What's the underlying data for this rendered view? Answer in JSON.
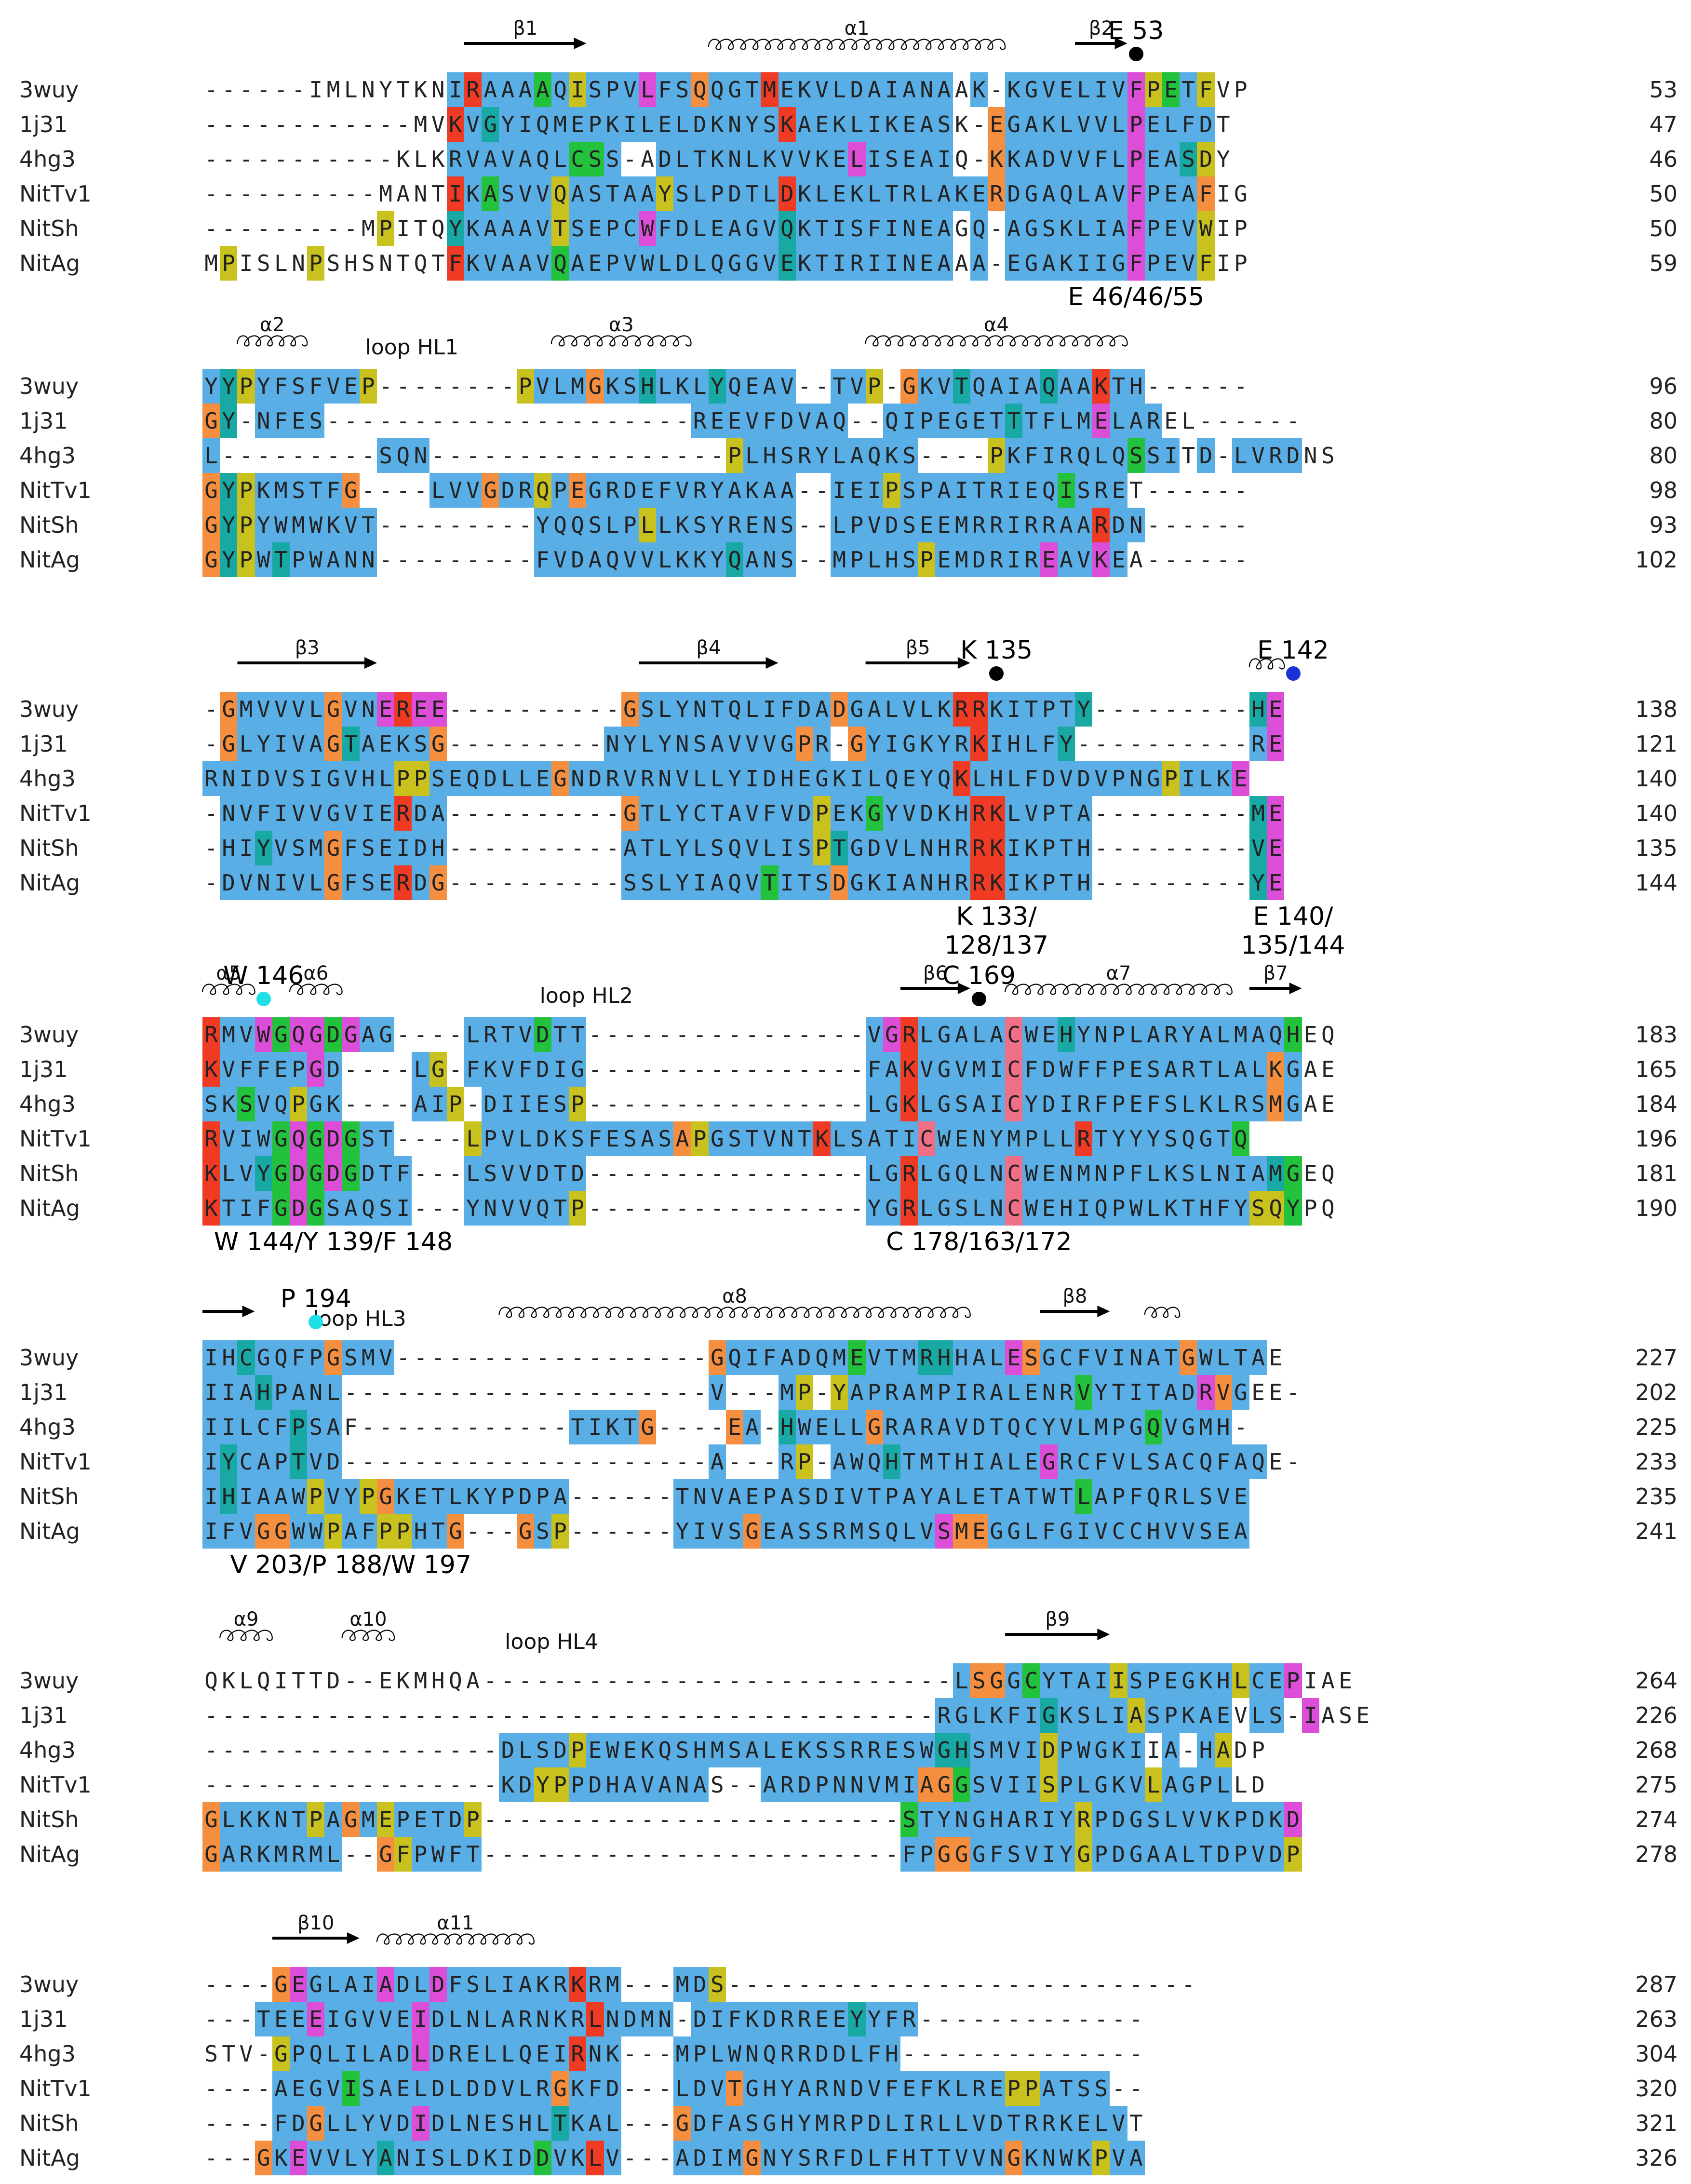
{
  "colors": {
    "blue": "#5aaee6",
    "red": "#ef3a24",
    "green": "#22c23c",
    "teal": "#18a9a4",
    "orange": "#f58f3f",
    "yellow": "#c9c21e",
    "magenta": "#dc4ed8",
    "pink": "#ee6f86",
    "dot_black": "#000000",
    "dot_cyan": "#1ee0e6",
    "dot_blue": "#1a33d6"
  },
  "sequence_names": [
    "3wuy",
    "1j31",
    "4hg3",
    "NitTv1",
    "NitSh",
    "NitAg"
  ],
  "blocks": [
    {
      "rows": [
        "------IMLNYTKNIRAAAAQISPVLFSQQGTMEKVLDAIANAAK-KGVELIVFPETFVP",
        "------------MVKVGYIQMEPKILELDKNYSKAEKLIKEASK-EGAKLVVLPELFDT",
        "-----------KLKRVAVAQLCSS-ADLTKNLKVVKELISEAIQ-KKADVVFLPEASDY",
        "----------MANTIKASVVQASTAAYSLPDTLDKLEKLTRLAKERDGAQLAVFPEAFIG",
        "---------MPITQYKAAAVTSEPCWFDLEAGVQKTISFINEAGQ-AGSKLIAFPEVWIP",
        "MPISLNPSHSNTQTFKVAAVQAEPVWLDLQGGVEKTIRIINEAAA-EGAKIIGFPEVFIP"
      ],
      "colors": [
        "..............BRBBBGBYBBBMBBOBBBRBBBBBBBBBB.BOBBBBBBBMYGBY",
        "..............RBTBBBBBBBBBBBBBBBBRBBBBBBBBB.BOBBBBBBBMBBBB",
        "..............BBBBBBBGGBB.BBBBBBBBBBBMBBBBB.BOBBBBBBBMBBTY",
        "..............RBGBBBYBBBBBYBBBBBBRBBBBBBBBBBBOBBBBBBBMBBBO",
        "..........Y...TBBBBBYBBBBMBBBBBBBTBBBBBBBBB.BOBBBBBBBMBBBY",
        ".Y....Y.......RBBBBBGBBBBBBBBBBBBTBBBBBBBBB.BOBBBBBBBMBBBY"
      ],
      "end_numbers": [
        "53",
        "47",
        "46",
        "50",
        "50",
        "59"
      ],
      "structure": [
        {
          "kind": "strand",
          "label": "β1",
          "from": 15,
          "to": 21
        },
        {
          "kind": "helix",
          "label": "α1",
          "from": 29,
          "to": 45
        },
        {
          "kind": "strand",
          "label": "β2",
          "from": 50,
          "to": 52
        }
      ],
      "loops": [],
      "markers": [
        {
          "col": 53,
          "color": "dot_black",
          "label": "E 53"
        }
      ],
      "below": [
        {
          "col": 53,
          "text": "E 46/46/55"
        }
      ]
    },
    {
      "rows": [
        "YYPYFSFVEP--------PVLMGKSHLKLYQEAV--TVP-GKVTQAIAQAAKTH------",
        "GY-NFES---------------------REEVFDVAQ--QIPEGETTTFLMELAREL------",
        "L---------SQN-----------------PLHSRYLAQKS----PKFIRQLQSSITD-LVRDNS",
        "GYPKMSTFG----LVVGDRQPEGRDEFVRYAKAA--IEIPSPAITRIEQISRET------",
        "GYPYWMWKVT---------YQQSLPLLKSYRENS--LPVDSEEMRRIRRAARDN------",
        "GYPWTPWANN---------FVDAQVVLKKYQANS--MPLHSPEMDRIREAVKEA------"
      ],
      "colors": [
        "BTYBBBBBBY........YBBBOBBTBBBTBBBB..BBY.OBBTBBBBTBBRBB......",
        "OT.BBBB.....................BBBBBBBBB..BBBBBBBTBBBBMBBB......",
        "B.........BBB.................YBBBBBBBBBB....YBBBBBBBGBB.BBBBBB",
        "OTYBBBBBO....BBBOBBYBOBBBBBBBBBBBB..BBBYBBBBBBBBBGBBB......",
        "OTYBBBBBBB.........BBBBBBYBBBBBBBB..BBBBBBBBBBBBBBBRBB......",
        "OTYBTBBBBB.........BBBBBBBBBBBTBBB..BBBBBYBBBBBBMBBMB......"
      ],
      "end_numbers": [
        "96",
        "80",
        "80",
        "98",
        "93",
        "102"
      ],
      "structure": [
        {
          "kind": "helix",
          "label": "α2",
          "from": 2,
          "to": 5
        },
        {
          "kind": "helix",
          "label": "α3",
          "from": 20,
          "to": 27
        },
        {
          "kind": "helix",
          "label": "α4",
          "from": 38,
          "to": 52
        }
      ],
      "loops": [
        {
          "col": 12,
          "text": "loop HL1"
        }
      ],
      "markers": [],
      "below": []
    },
    {
      "rows": [
        "-GMVVVLGVNEREE----------GSLYNTQLIFDADGALVLKRRKITPTY---------HE",
        "-GLYIVAGTAEKSG---------NYLYNSAVVVGPR-GYIGKYRKIHLFY----------RE",
        "RNIDVSIGVHLPPSEQDLLEGNDRVRNVLLYIDHEGKILQEYQKLHLFDVDVPNGPILKE",
        "-NVFIVVGVIERDA----------GTLYCTAVFVDPEKGYVDKHRKLVPTA---------ME",
        "-HIYVSMGFSEIDH----------ATLYLSQVLISPTGDVLNHRRKIKPTH---------VE",
        "-DVNIVLGFSERDG----------SSLYIAQVTITSDGKIANHRRKIKPTH---------YE"
      ],
      "colors": [
        ".OBBBBBOBBMRMM..........OBBBBBBBBBBBOBBBBBBRRBBBBBT.........TM",
        ".OBBBBBOTBBBBO.........BBBBBBBBBBBOB.OBBBBBBRBBBBT..........BM",
        "BBBBBBBBBBBYYBBBBBBBOBBBBBBBBBBBBBBBBBBBBBBRBBBBBBBBBBBYBBBM",
        ".BBBBBBBBBBRBB..........OBBBBBBBBBBYBBGBBBBBRRBBBBB.........TM",
        ".BBTBBBOBBBBBB..........BBBBBBBBBBBYTBBBBBBBRRBBBBB.........TM",
        ".BBBBBBOBBBRBO..........BBBBBBBBGBBBOBBBBBBBRRBBBBB.........TM"
      ],
      "end_numbers": [
        "138",
        "121",
        "140",
        "140",
        "135",
        "144"
      ],
      "structure": [
        {
          "kind": "strand",
          "label": "β3",
          "from": 2,
          "to": 9
        },
        {
          "kind": "strand",
          "label": "β4",
          "from": 25,
          "to": 32
        },
        {
          "kind": "strand",
          "label": "β5",
          "from": 38,
          "to": 43
        },
        {
          "kind": "helix",
          "label": "",
          "from": 60,
          "to": 61
        }
      ],
      "loops": [],
      "markers": [
        {
          "col": 45,
          "color": "dot_black",
          "label": "K 135"
        },
        {
          "col": 62,
          "color": "dot_blue",
          "label": "E 142"
        }
      ],
      "below": [
        {
          "col": 45,
          "text": "K 133/\n128/137"
        },
        {
          "col": 62,
          "text": "E 140/\n135/144"
        }
      ]
    },
    {
      "rows": [
        "RMVWGQGDGAG----LRTVDTT----------------VGRLGALACWEHYNPLARYALMAQHEQ",
        "KVFFEPGD----LG-FKVFDIG----------------FAKVGVMICFDWFFPESARTLALKGAE",
        "SKSVQPGK----AIP-DIIESP----------------LGKLGSAICYDIRFPEFSLKLRSMGAE",
        "RVIWGQGDGST----LPVLDKSFESASAPGSTVNTKLSATICWENYMPLLRTYYYSQGTQ",
        "KLVYGDGDGDTF---LSVVDTD----------------LGRLGQLNCWENMNPFLKSLNIAMGEQ",
        "KTIFGDGSAQSI---YNVVQTP----------------YGRLGSLNCWEHIQPWLKTHFYSQYPQ"
      ],
      "colors": [
        "RBBMGMMGMBB....BBBBGBB................BMRBBBBBPBBTBBBBBBBBBBBBG",
        "RBBBBBMB....BY.BBBBBBB................BBRBBBBBPBBBBBBBBBBBBBBOB",
        "BBGBBYBB....BBY.BBBBBY................BBRBBBBBPBBBBBBBBBBBBBBOB",
        "RBBBGMGMGBB....YBBBBBBBBBBBOYBBBBBBRBBBBBPBBBBBBBBRBBBBBBBBG",
        "RBBTGMGMGBBB...BBBBBBB................BBRBBBBBPBBBBBBBBBBBBBBTG",
        "RBBBGMGBBBBB...BBBBBBY................BBRBBBBBPBBBBBBBBBBBBBYYG"
      ],
      "end_numbers": [
        "183",
        "165",
        "184",
        "196",
        "181",
        "190"
      ],
      "structure": [
        {
          "kind": "helix",
          "label": "α5",
          "from": 0,
          "to": 2
        },
        {
          "kind": "helix",
          "label": "α6",
          "from": 5,
          "to": 7
        },
        {
          "kind": "strand",
          "label": "β6",
          "from": 40,
          "to": 43
        },
        {
          "kind": "helix",
          "label": "α7",
          "from": 46,
          "to": 58
        },
        {
          "kind": "strand",
          "label": "β7",
          "from": 60,
          "to": 62
        }
      ],
      "loops": [
        {
          "col": 22,
          "text": "loop HL2"
        }
      ],
      "markers": [
        {
          "col": 3,
          "color": "dot_cyan",
          "label": "W 146"
        },
        {
          "col": 44,
          "color": "dot_black",
          "label": "C 169"
        }
      ],
      "below": [
        {
          "col": 7,
          "text": "W 144/Y 139/F 148"
        },
        {
          "col": 44,
          "text": "C 178/163/172"
        }
      ]
    },
    {
      "rows": [
        "IHCGQFPGSMV------------------GQIFADQMEVTMRHHALESGCFVINATGWLTAE",
        "IIAHPANL---------------------V---MP-YAPRAMPIRALENRVYTITADRVGEE-",
        "IILCFPSAF------------TIKTG----EA-HWELLGRARAVDTQCYVLMPGQVGMH-",
        "IYCAPTVD---------------------A---RP-AWQHTMTHIALEGRCFVLSACQFAQE-",
        "IHIAAWPVYPGKETLKYPDPA------TNVAEPASDIVTPAYALETATWTLAPFQRLSVE",
        "IFVGGWWPAFPPHTG---GSP------YIVSGEASSRMSQLVSMEGGLFGIVCCHVVSEA"
      ],
      "colors": [
        "BBTBBBBOBBB..................OBBBBBBBGBBBTTBBBMOBBBBBBBBOBBBB",
        "BBBTBBBB.....................B...BY.YBBBBBBBBBBBBBGBBBBBBMOB.",
        "BBBBBTBB.............BBBBO....OB.TBBBBOBBBBBBBBBBBBBBBGBBBBB.",
        "BTBBBTBB.....................B...BY.BBBTBBBBBBBBMBBBBBBBBBBBB.",
        "BTBBBBYBBYOBBBBBBBBBB......BBBBBBBBBBBBBBBBBBBBBBBGBBBBBBBBB",
        "BBBOOBBYBBYYBBO...OBY......BBBBOBBBBBBBBBBMOOBBBBBBBBBBBBBBB"
      ],
      "end_numbers": [
        "227",
        "202",
        "225",
        "233",
        "235",
        "241"
      ],
      "structure": [
        {
          "kind": "strand",
          "label": "",
          "from": 0,
          "to": 2
        },
        {
          "kind": "helix",
          "label": "α8",
          "from": 17,
          "to": 43
        },
        {
          "kind": "strand",
          "label": "β8",
          "from": 48,
          "to": 51
        },
        {
          "kind": "helix",
          "label": "",
          "from": 54,
          "to": 55
        }
      ],
      "loops": [
        {
          "col": 9,
          "text": "loop HL3"
        }
      ],
      "markers": [
        {
          "col": 6,
          "color": "dot_cyan",
          "label": "P 194"
        }
      ],
      "below": [
        {
          "col": 8,
          "text": "V 203/P 188/W 197"
        }
      ]
    },
    {
      "rows": [
        "QKLQITTD--EKMHQA---------------------------LSGGCYTAIISPEGKHLCEPIAE",
        "------------------------------------------RGLKFIGKSLIASPKAEVLS-IASE",
        "-----------------DLSDPEWEKQSHMSALEKSSRRESWGHSMVIDPWGKIIA-HADP",
        "-----------------KDYPPDHAVANAS--ARDPNNVMIAGGSVIISPLGKVLAGPLLD",
        "GLKKNTPAGMEPETDP------------------------STYNGHARIYRPDGSLVVKPDKD",
        "GARKMRML--GFPWFT------------------------FPGGGFSVIYGPDGAALTDPVDP"
      ],
      "colors": [
        "..........................................BBOOBGBBBBYBBBBBBYBBM",
        "..........................................BBBBBBTBBBBYBBBBB.BBBM",
        ".................BBBBYBBBBBBBBBBBBBBBBBBBBTTBBBBYBBBBB.BBBY",
        ".................BBYYBBBBBBBB..BBBBBBBBBBOOGBBBBYBBBBBYBBBB",
        "OBBBBBYBOBYBBBBY........................GBBBBBBBBBYBBBBBBBBBBBM",
        "OBBBBBBB..OYBBBB........................BBOOBBBBBBYBBBBBBBBBBBY"
      ],
      "end_numbers": [
        "264",
        "226",
        "268",
        "275",
        "274",
        "278"
      ],
      "structure": [
        {
          "kind": "helix",
          "label": "α9",
          "from": 1,
          "to": 3
        },
        {
          "kind": "helix",
          "label": "α10",
          "from": 8,
          "to": 10
        },
        {
          "kind": "strand",
          "label": "β9",
          "from": 46,
          "to": 51
        }
      ],
      "loops": [
        {
          "col": 20,
          "text": "loop HL4"
        }
      ],
      "markers": [],
      "below": []
    },
    {
      "rows": [
        "----GEGLAIADLDFSLIAKRKRM---MDS---------------------------",
        "---TEEEIGVVEIDLNLARNKRLNDMN-DIFKDRREEYYFR-------------",
        "STV-GPQLILADLDRELLQEIRNK---MPLWNQRRDDLFH--------------",
        "----AEGVISAELDLDDVLRGKFD---LDVTGHYARNDVFEFKLREPPATSS--",
        "----FDGLLYVDIDLNESHLTKAL---GDFASGHYMRPDLIRLLVDTRRKELVT",
        "---GKEVVLYANISLDKIDDVKLV---ADIMGNYSRFDLFHTTVVNGKNWKPVA"
      ],
      "colors": [
        "....OMBBBBMBBMBBBBBBBRBB...BBY...........................",
        "...BBBMBBBBBMBBBBBBBBBRBBBB.BBBBBBBBBTBBB.............",
        "....YBBBBBBBMBBBBBBBBRBB...BBBBBBBBBBBBB..............",
        "....BBBBGBBBBBBBBBBBOBBB...BBBOBBBBBBBBBBBBBBBYYBBBB..",
        "....BBOBBBBBMBBBBBBBTBBB...OBBBBBBBBBBBBBBBBBBBBBBBBB",
        "...OBMBBBBTBBBBBBBBGBBRB...BBBBOBBBBBBBBBBBBBBOBBBBYBB"
      ],
      "end_numbers": [
        "287",
        "263",
        "304",
        "320",
        "321",
        "326"
      ],
      "structure": [
        {
          "kind": "strand",
          "label": "β10",
          "from": 4,
          "to": 8
        },
        {
          "kind": "helix",
          "label": "α11",
          "from": 10,
          "to": 18
        }
      ],
      "loops": [],
      "markers": [],
      "below": []
    }
  ]
}
